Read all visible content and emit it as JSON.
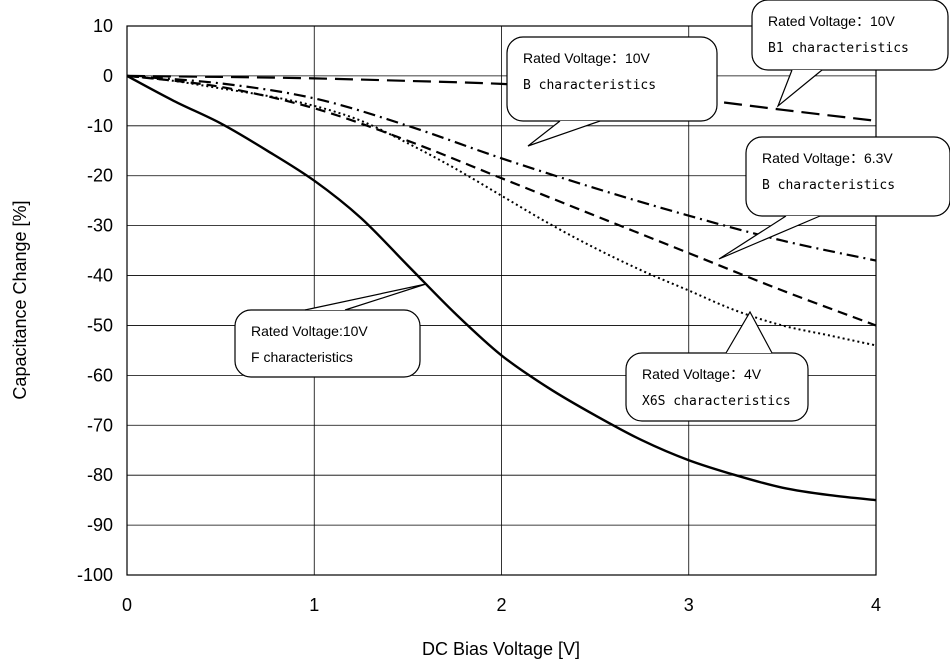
{
  "chart_data": {
    "type": "line",
    "title": "",
    "xlabel": "DC Bias Voltage [V]",
    "ylabel": "Capacitance Change [%]",
    "xlim": [
      0,
      4
    ],
    "ylim": [
      -100,
      10
    ],
    "xticks": [
      "0",
      "1",
      "2",
      "3",
      "4"
    ],
    "yticks": [
      "10",
      "0",
      "-10",
      "-20",
      "-30",
      "-40",
      "-50",
      "-60",
      "-70",
      "-80",
      "-90",
      "-100"
    ],
    "grid": true,
    "series": [
      {
        "style": "long-dash",
        "x": [
          0,
          0.5,
          1,
          1.5,
          2,
          2.5,
          3,
          3.5,
          4
        ],
        "y": [
          0,
          -0.2,
          -0.5,
          -1,
          -1.6,
          -2.8,
          -4.5,
          -6.8,
          -9
        ]
      },
      {
        "style": "dash-dot",
        "x": [
          0,
          0.5,
          1,
          1.5,
          2,
          2.5,
          3,
          3.5,
          4
        ],
        "y": [
          0,
          -1.5,
          -4.5,
          -10,
          -16.5,
          -22.5,
          -28,
          -33,
          -37
        ]
      },
      {
        "style": "short-dash",
        "x": [
          0,
          0.5,
          1,
          1.5,
          2,
          2.5,
          3,
          3.5,
          4
        ],
        "y": [
          0,
          -2.2,
          -6.5,
          -13,
          -20.5,
          -28,
          -35.5,
          -43,
          -50
        ]
      },
      {
        "style": "dotted",
        "x": [
          0,
          0.25,
          0.5,
          0.75,
          1,
          1.25,
          1.5,
          1.75,
          2,
          2.25,
          2.5,
          2.75,
          3,
          3.25,
          3.5,
          3.75,
          4
        ],
        "y": [
          0,
          -1,
          -2.5,
          -4,
          -6,
          -9,
          -13.5,
          -18.5,
          -24,
          -29.5,
          -34.5,
          -39,
          -43,
          -47,
          -50,
          -52,
          -54
        ]
      },
      {
        "style": "solid",
        "x": [
          0,
          0.25,
          0.5,
          0.75,
          1,
          1.25,
          1.5,
          1.75,
          2,
          2.25,
          2.5,
          2.75,
          3,
          3.25,
          3.5,
          3.75,
          4
        ],
        "y": [
          0,
          -5,
          -9.5,
          -15,
          -21,
          -28.5,
          -38,
          -47.5,
          -56,
          -62.5,
          -68,
          -73,
          -77,
          -80,
          -82.5,
          -84,
          -85
        ]
      }
    ],
    "annotations": [
      {
        "line1": "Rated Voltage：10V",
        "line2": "B1 characteristics"
      },
      {
        "line1": "Rated Voltage：10V",
        "line2": "B characteristics"
      },
      {
        "line1": "Rated Voltage：6.3V",
        "line2": "B characteristics"
      },
      {
        "line1": "Rated Voltage:10V",
        "line2": "F characteristics"
      },
      {
        "line1": "Rated Voltage：4V",
        "line2": "X6S characteristics"
      }
    ]
  }
}
